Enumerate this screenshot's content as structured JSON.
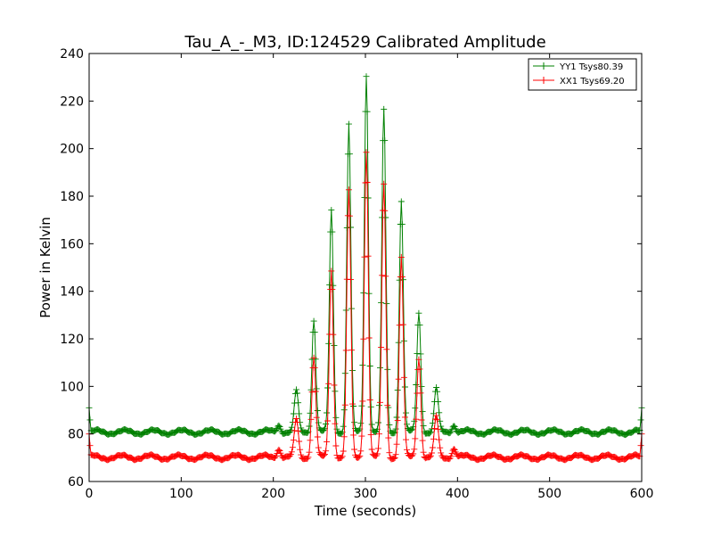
{
  "chart_data": {
    "type": "line",
    "title": "Tau_A_-_M3, ID:124529 Calibrated Amplitude",
    "xlabel": "Time (seconds)",
    "ylabel": "Power in Kelvin",
    "xlim": [
      0,
      600
    ],
    "ylim": [
      60,
      240
    ],
    "xticks": [
      0,
      100,
      200,
      300,
      400,
      500,
      600
    ],
    "yticks": [
      60,
      80,
      100,
      120,
      140,
      160,
      180,
      200,
      220,
      240
    ],
    "xtick_labels": [
      "0",
      "100",
      "200",
      "300",
      "400",
      "500",
      "600"
    ],
    "ytick_labels": [
      "60",
      "80",
      "100",
      "120",
      "140",
      "160",
      "180",
      "200",
      "220",
      "240"
    ],
    "grid": false,
    "legend_position": "top-right",
    "series": [
      {
        "name": "YY1 Tsys80.39",
        "color": "#008000",
        "marker": "plus",
        "baseline": 80.8,
        "ripple_amplitude": 0.9,
        "start_spike": 91,
        "end_spike": 91,
        "peaks": [
          [
            206,
            84
          ],
          [
            225,
            98
          ],
          [
            244,
            128
          ],
          [
            263,
            174
          ],
          [
            282,
            210
          ],
          [
            301,
            231
          ],
          [
            320,
            216
          ],
          [
            339,
            178
          ],
          [
            358,
            131
          ],
          [
            377,
            99
          ],
          [
            396,
            84
          ]
        ]
      },
      {
        "name": "XX1 Tsys69.20",
        "color": "#ff0000",
        "marker": "plus",
        "baseline": 70.2,
        "ripple_amplitude": 0.9,
        "start_spike": 80,
        "end_spike": 80,
        "peaks": [
          [
            206,
            74
          ],
          [
            225,
            86
          ],
          [
            244,
            112
          ],
          [
            263,
            149
          ],
          [
            282,
            182
          ],
          [
            301,
            199
          ],
          [
            320,
            185
          ],
          [
            339,
            154
          ],
          [
            358,
            112
          ],
          [
            377,
            87
          ],
          [
            396,
            74
          ]
        ]
      }
    ]
  }
}
